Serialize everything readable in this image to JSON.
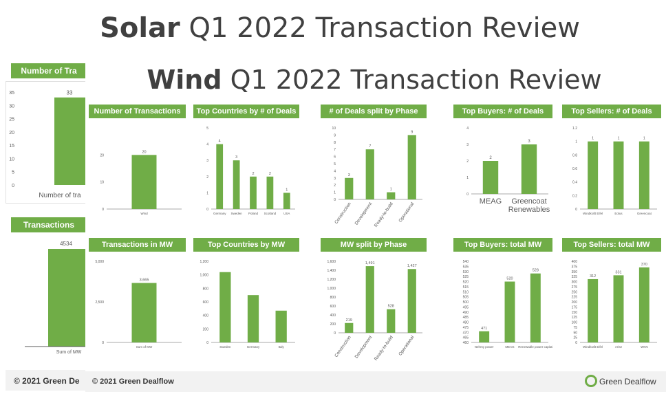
{
  "solar_title": {
    "bold": "Solar",
    "rest": " Q1 2022 Transaction Review"
  },
  "wind_title": {
    "bold": "Wind",
    "rest": " Q1 2022 Transaction Review"
  },
  "back_slide": {
    "header1": "Number of Tra",
    "header2": "Transactions",
    "footer": "© 2021 Green De",
    "ticks1": [
      "35",
      "30",
      "25",
      "20",
      "15",
      "10",
      "5",
      "0"
    ],
    "bar1_value": "33",
    "bar1_label": "Number of tra",
    "bar2_value": "4534",
    "bar2_label": "Sum of MW"
  },
  "footer": {
    "copyright": "© 2021 Green Dealflow",
    "brand": "Green Dealflow"
  },
  "colors": {
    "accent": "#70ad47",
    "bar": "#70ad47"
  },
  "chart_data": [
    {
      "type": "bar",
      "title": "Number of Transactions",
      "categories": [
        "Wind"
      ],
      "values": [
        20
      ],
      "ylim": [
        0,
        30
      ],
      "yticks": [
        "20",
        "10",
        "0"
      ],
      "ytick_values": [
        20,
        10,
        0
      ],
      "value_labels": [
        "20"
      ]
    },
    {
      "type": "bar",
      "title": "Top Countries by # of Deals",
      "categories": [
        "Germany",
        "Sweden",
        "Poland",
        "Scotland",
        "USA"
      ],
      "values": [
        4,
        3,
        2,
        2,
        1
      ],
      "ylim": [
        0,
        5
      ],
      "yticks": [
        "5",
        "4",
        "3",
        "2",
        "1",
        "0"
      ],
      "ytick_values": [
        5,
        4,
        3,
        2,
        1,
        0
      ],
      "value_labels": [
        "4",
        "3",
        "2",
        "2",
        "1"
      ]
    },
    {
      "type": "bar",
      "title": "# of Deals split by Phase",
      "categories": [
        "Construction",
        "Development",
        "Ready-to-build",
        "Operational"
      ],
      "values": [
        3,
        7,
        1,
        9
      ],
      "ylim": [
        0,
        10
      ],
      "yticks": [
        "10",
        "9",
        "8",
        "7",
        "6",
        "5",
        "4",
        "3",
        "2",
        "1",
        "0"
      ],
      "ytick_values": [
        10,
        9,
        8,
        7,
        6,
        5,
        4,
        3,
        2,
        1,
        0
      ],
      "value_labels": [
        "3",
        "7",
        "1",
        "9"
      ],
      "rotate_labels": true
    },
    {
      "type": "bar",
      "title": "Top Buyers: # of Deals",
      "categories": [
        "MEAG",
        "Greencoat Renewables"
      ],
      "values": [
        2,
        3
      ],
      "ylim": [
        0,
        4
      ],
      "yticks": [
        "4",
        "3",
        "2",
        "1",
        "0"
      ],
      "ytick_values": [
        4,
        3,
        2,
        1,
        0
      ],
      "value_labels": [
        "2",
        "3"
      ],
      "big_labels": true
    },
    {
      "type": "bar",
      "title": "Top Sellers: # of Deals",
      "categories": [
        "Windkraft Eifel",
        "Eolus",
        "Greencoat"
      ],
      "values": [
        1,
        1,
        1
      ],
      "ylim": [
        0,
        1.2
      ],
      "yticks": [
        "1.2",
        "1",
        "0.8",
        "0.6",
        "0.4",
        "0.2",
        "0"
      ],
      "ytick_values": [
        1.2,
        1,
        0.8,
        0.6,
        0.4,
        0.2,
        0
      ],
      "value_labels": [
        "1",
        "1",
        "1"
      ]
    },
    {
      "type": "bar",
      "title": "Transactions in MW",
      "categories": [
        "Sum of MW"
      ],
      "values": [
        3665
      ],
      "ylim": [
        0,
        5000
      ],
      "yticks": [
        "5,000",
        "2,500",
        "0"
      ],
      "ytick_values": [
        5000,
        2500,
        0
      ],
      "value_labels": [
        "3,665"
      ]
    },
    {
      "type": "bar",
      "title": "Top Countries by MW",
      "categories": [
        "Sweden",
        "Germany",
        "Italy"
      ],
      "values": [
        1040,
        700,
        470
      ],
      "ylim": [
        0,
        1200
      ],
      "yticks": [
        "1,200",
        "1,000",
        "800",
        "600",
        "400",
        "200",
        "0"
      ],
      "ytick_values": [
        1200,
        1000,
        800,
        600,
        400,
        200,
        0
      ],
      "value_labels": [
        "",
        "",
        ""
      ]
    },
    {
      "type": "bar",
      "title": "MW split by Phase",
      "categories": [
        "Construction",
        "Development",
        "Ready-to-build",
        "Operational"
      ],
      "values": [
        219,
        1491,
        528,
        1427
      ],
      "ylim": [
        0,
        1600
      ],
      "yticks": [
        "1,600",
        "1,400",
        "1,200",
        "1,000",
        "800",
        "600",
        "400",
        "200",
        "0"
      ],
      "ytick_values": [
        1600,
        1400,
        1200,
        1000,
        800,
        600,
        400,
        200,
        0
      ],
      "value_labels": [
        "219",
        "1,491",
        "528",
        "1,427"
      ],
      "rotate_labels": true
    },
    {
      "type": "bar",
      "title": "Top Buyers: total MW",
      "categories": [
        "Nehmy power",
        "MEAG",
        "Renewable power capital"
      ],
      "values": [
        471,
        520,
        528
      ],
      "ylim": [
        460,
        540
      ],
      "yticks": [
        "540",
        "535",
        "530",
        "525",
        "520",
        "515",
        "510",
        "505",
        "500",
        "495",
        "490",
        "485",
        "480",
        "475",
        "470",
        "465",
        "460"
      ],
      "ytick_values": [
        540,
        535,
        530,
        525,
        520,
        515,
        510,
        505,
        500,
        495,
        490,
        485,
        480,
        475,
        470,
        465,
        460
      ],
      "value_labels": [
        "471",
        "520",
        "528"
      ]
    },
    {
      "type": "bar",
      "title": "Top Sellers: total MW",
      "categories": [
        "Windkraft Eifel",
        "Arise",
        "WKN"
      ],
      "values": [
        312,
        331,
        370
      ],
      "ylim": [
        0,
        400
      ],
      "yticks": [
        "400",
        "375",
        "350",
        "325",
        "300",
        "275",
        "250",
        "225",
        "200",
        "175",
        "150",
        "125",
        "100",
        "75",
        "50",
        "25",
        "0"
      ],
      "ytick_values": [
        400,
        375,
        350,
        325,
        300,
        275,
        250,
        225,
        200,
        175,
        150,
        125,
        100,
        75,
        50,
        25,
        0
      ],
      "value_labels": [
        "312",
        "331",
        "370"
      ]
    }
  ]
}
